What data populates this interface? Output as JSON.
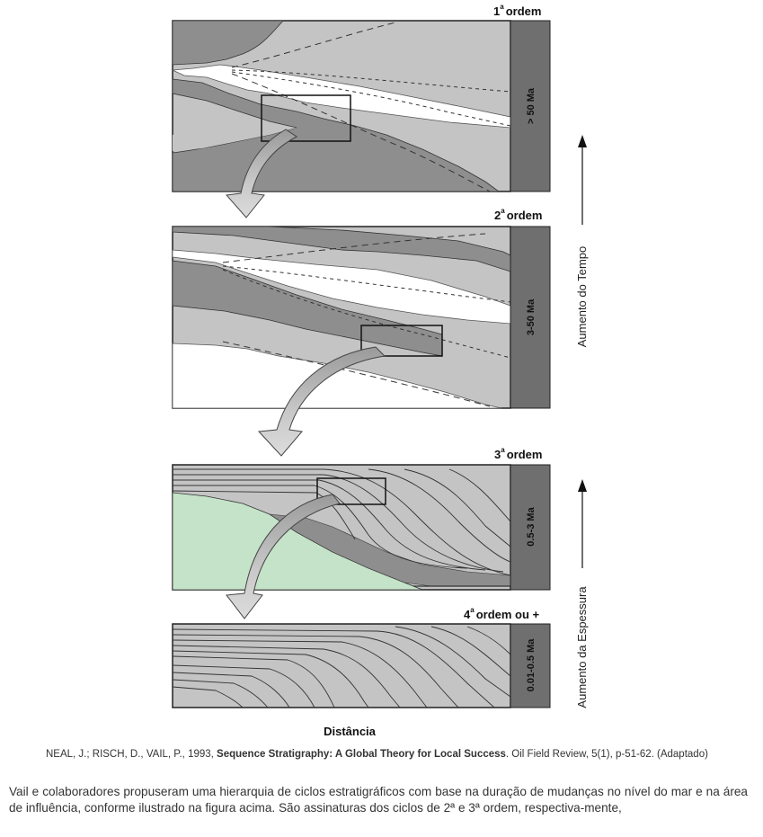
{
  "panels": [
    {
      "order_num": "1",
      "order_sup": "a",
      "order_label": "ordem",
      "duration": "> 50 Ma"
    },
    {
      "order_num": "2",
      "order_sup": "a",
      "order_label": "ordem",
      "duration": "3-50 Ma"
    },
    {
      "order_num": "3",
      "order_sup": "a",
      "order_label": "ordem",
      "duration": "0.5-3 Ma"
    },
    {
      "order_num": "4",
      "order_sup": "a",
      "order_label": "ordem ou +",
      "duration": "0.01-0.5 Ma"
    }
  ],
  "axes": {
    "time_label": "Aumento do Tempo",
    "thickness_label": "Aumento da Espessura",
    "distance_label": "Distância"
  },
  "citation": {
    "authors": "NEAL, J.; RISCH, D., VAIL, P., 1993, ",
    "title": "Sequence Stratigraphy: A Global Theory for Local Success",
    "source": ". Oil Field Review, 5(1), p-51-62. (Adaptado)"
  },
  "question": {
    "text": "Vail e colaboradores propuseram uma hierarquia de ciclos estratigráficos com base na duração de mudanças no nível do mar e na área de influência, conforme ilustrado na figura acima. São assinaturas dos ciclos de 2ª e 3ª ordem, respectiva-mente,"
  },
  "colors": {
    "light_gray": "#c4c4c4",
    "dark_gray": "#8e8e8e",
    "bar_gray": "#6f6f6f",
    "green": "#c5e3c8",
    "white": "#ffffff"
  }
}
